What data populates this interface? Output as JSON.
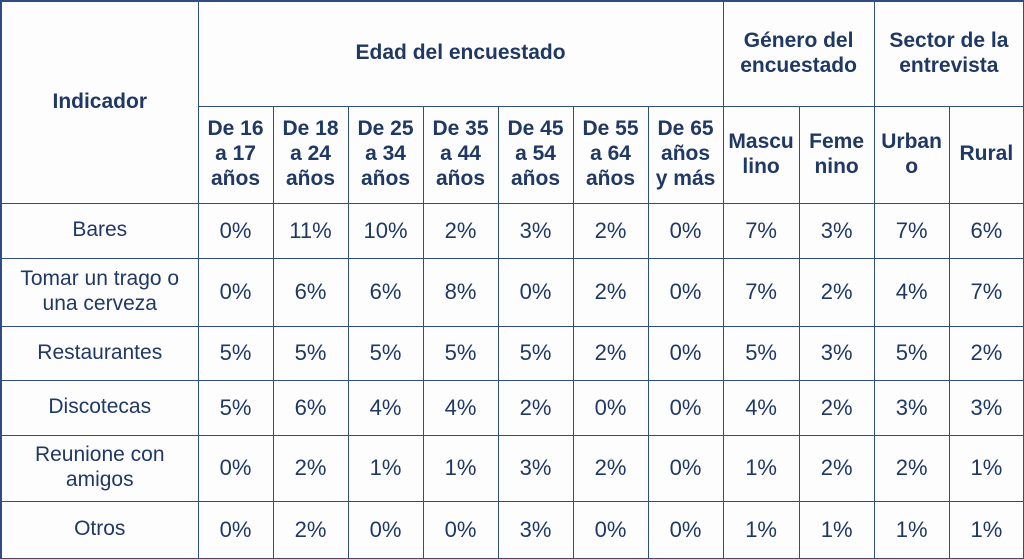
{
  "chart_data": {
    "type": "table",
    "corner_header": "Indicador",
    "column_groups": [
      {
        "label": "Edad del encuestado",
        "span": 7
      },
      {
        "label": "Género del encuestado",
        "span": 2
      },
      {
        "label": "Sector de la entrevista",
        "span": 2
      }
    ],
    "columns": [
      "De 16 a 17 años",
      "De 18 a 24 años",
      "De 25 a 34 años",
      "De 35 a 44 años",
      "De 45 a 54 años",
      "De 55 a 64 años",
      "De 65 años y más",
      "Masculino",
      "Femenino",
      "Urbano",
      "Rural"
    ],
    "rows": [
      {
        "label": "Bares",
        "values": [
          "0%",
          "11%",
          "10%",
          "2%",
          "3%",
          "2%",
          "0%",
          "7%",
          "3%",
          "7%",
          "6%"
        ]
      },
      {
        "label": "Tomar un trago o una cerveza",
        "values": [
          "0%",
          "6%",
          "6%",
          "8%",
          "0%",
          "2%",
          "0%",
          "7%",
          "2%",
          "4%",
          "7%"
        ]
      },
      {
        "label": "Restaurantes",
        "values": [
          "5%",
          "5%",
          "5%",
          "5%",
          "5%",
          "2%",
          "0%",
          "5%",
          "3%",
          "5%",
          "2%"
        ]
      },
      {
        "label": "Discotecas",
        "values": [
          "5%",
          "6%",
          "4%",
          "4%",
          "2%",
          "0%",
          "0%",
          "4%",
          "2%",
          "3%",
          "3%"
        ]
      },
      {
        "label": "Reunione con amigos",
        "values": [
          "0%",
          "2%",
          "1%",
          "1%",
          "3%",
          "2%",
          "0%",
          "1%",
          "2%",
          "2%",
          "1%"
        ]
      },
      {
        "label": "Otros",
        "values": [
          "0%",
          "2%",
          "0%",
          "0%",
          "3%",
          "0%",
          "0%",
          "1%",
          "1%",
          "1%",
          "1%"
        ]
      }
    ],
    "colors": {
      "text": "#1F3864",
      "border": "#2F4E7E",
      "background": "#FFFFFF"
    }
  }
}
